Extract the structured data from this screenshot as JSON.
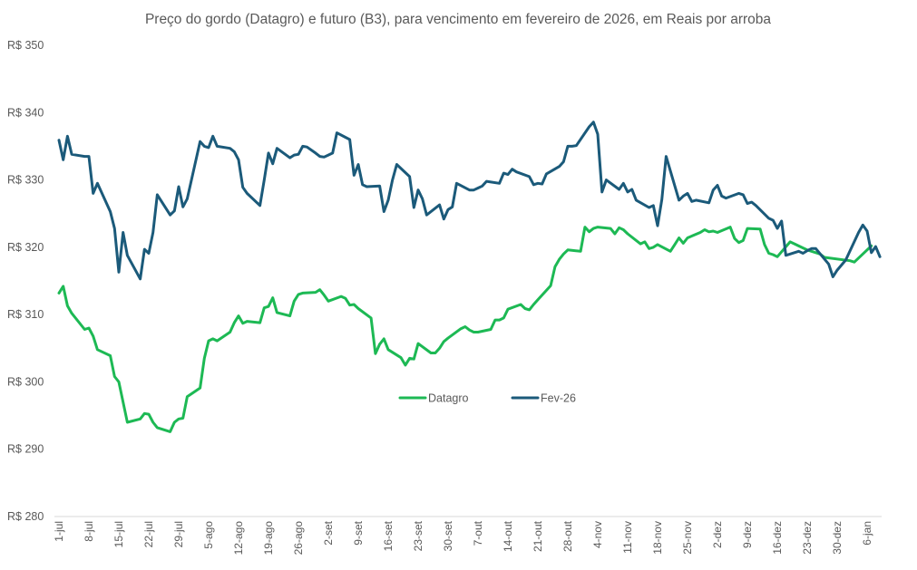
{
  "chart_data": {
    "type": "line",
    "title": "Preço do gordo (Datagro) e futuro (B3), para vencimento em fevereiro de 2026, em Reais por arroba",
    "xlabel": "",
    "ylabel": "",
    "ylim": [
      280,
      350
    ],
    "yticks": [
      350,
      340,
      330,
      320,
      310,
      300,
      290,
      280
    ],
    "ytick_prefix": "R$ ",
    "grid": false,
    "legend_position": "center",
    "xtick_labels": [
      "1-jul",
      "8-jul",
      "15-jul",
      "22-jul",
      "29-jul",
      "5-ago",
      "12-ago",
      "19-ago",
      "26-ago",
      "2-set",
      "9-set",
      "16-set",
      "23-set",
      "30-set",
      "7-out",
      "14-out",
      "21-out",
      "28-out",
      "4-nov",
      "11-nov",
      "18-nov",
      "25-nov",
      "2-dez",
      "9-dez",
      "16-dez",
      "23-dez",
      "30-dez",
      "6-jan"
    ],
    "x_unit": "days since 1-jul",
    "series": [
      {
        "name": "Datagro",
        "color": "#1DB954",
        "points": [
          [
            0,
            313.2
          ],
          [
            1,
            314.2
          ],
          [
            2,
            311.3
          ],
          [
            3,
            310.2
          ],
          [
            6,
            307.8
          ],
          [
            7,
            308.0
          ],
          [
            8,
            306.8
          ],
          [
            9,
            304.8
          ],
          [
            12,
            303.9
          ],
          [
            13,
            300.8
          ],
          [
            14,
            300.0
          ],
          [
            16,
            294.0
          ],
          [
            19,
            294.5
          ],
          [
            20,
            295.3
          ],
          [
            21,
            295.2
          ],
          [
            22,
            294.0
          ],
          [
            23,
            293.2
          ],
          [
            26,
            292.6
          ],
          [
            27,
            294.0
          ],
          [
            28,
            294.5
          ],
          [
            29,
            294.6
          ],
          [
            30,
            297.8
          ],
          [
            33,
            299.1
          ],
          [
            34,
            303.5
          ],
          [
            35,
            306.1
          ],
          [
            36,
            306.4
          ],
          [
            37,
            306.1
          ],
          [
            40,
            307.4
          ],
          [
            41,
            308.8
          ],
          [
            42,
            309.8
          ],
          [
            43,
            308.7
          ],
          [
            44,
            309.0
          ],
          [
            47,
            308.8
          ],
          [
            48,
            311.0
          ],
          [
            49,
            311.2
          ],
          [
            50,
            312.5
          ],
          [
            51,
            310.3
          ],
          [
            54,
            309.8
          ],
          [
            55,
            312.0
          ],
          [
            56,
            313.0
          ],
          [
            57,
            313.2
          ],
          [
            60,
            313.3
          ],
          [
            61,
            313.7
          ],
          [
            62,
            312.9
          ],
          [
            63,
            312.0
          ],
          [
            66,
            312.7
          ],
          [
            67,
            312.4
          ],
          [
            68,
            311.4
          ],
          [
            69,
            311.5
          ],
          [
            70,
            310.9
          ],
          [
            73,
            309.5
          ],
          [
            74,
            304.2
          ],
          [
            75,
            305.6
          ],
          [
            76,
            306.4
          ],
          [
            77,
            304.8
          ],
          [
            80,
            303.6
          ],
          [
            81,
            302.5
          ],
          [
            82,
            303.5
          ],
          [
            83,
            303.4
          ],
          [
            84,
            305.7
          ],
          [
            87,
            304.3
          ],
          [
            88,
            304.3
          ],
          [
            89,
            305.0
          ],
          [
            90,
            306.0
          ],
          [
            91,
            306.5
          ],
          [
            94,
            307.9
          ],
          [
            95,
            308.2
          ],
          [
            96,
            307.7
          ],
          [
            97,
            307.4
          ],
          [
            98,
            307.4
          ],
          [
            101,
            307.8
          ],
          [
            102,
            309.2
          ],
          [
            103,
            309.2
          ],
          [
            104,
            309.5
          ],
          [
            105,
            310.8
          ],
          [
            108,
            311.5
          ],
          [
            109,
            310.9
          ],
          [
            110,
            310.7
          ],
          [
            111,
            311.5
          ],
          [
            112,
            312.2
          ],
          [
            115,
            314.3
          ],
          [
            116,
            317.1
          ],
          [
            117,
            318.2
          ],
          [
            118,
            319.0
          ],
          [
            119,
            319.6
          ],
          [
            122,
            319.4
          ],
          [
            123,
            323.0
          ],
          [
            124,
            322.3
          ],
          [
            125,
            322.8
          ],
          [
            126,
            323.0
          ],
          [
            129,
            322.8
          ],
          [
            130,
            322.0
          ],
          [
            131,
            322.9
          ],
          [
            132,
            322.6
          ],
          [
            133,
            322.0
          ],
          [
            136,
            320.5
          ],
          [
            137,
            320.8
          ],
          [
            138,
            319.8
          ],
          [
            139,
            320.0
          ],
          [
            140,
            320.4
          ],
          [
            143,
            319.4
          ],
          [
            144,
            320.4
          ],
          [
            145,
            321.4
          ],
          [
            146,
            320.6
          ],
          [
            147,
            321.4
          ],
          [
            150,
            322.2
          ],
          [
            151,
            322.6
          ],
          [
            152,
            322.3
          ],
          [
            153,
            322.4
          ],
          [
            154,
            322.2
          ],
          [
            157,
            323.0
          ],
          [
            158,
            321.3
          ],
          [
            159,
            320.7
          ],
          [
            160,
            321.0
          ],
          [
            161,
            322.8
          ],
          [
            164,
            322.7
          ],
          [
            165,
            320.4
          ],
          [
            166,
            319.1
          ],
          [
            167,
            318.9
          ],
          [
            168,
            318.6
          ],
          [
            171,
            320.8
          ],
          [
            172,
            320.5
          ],
          [
            173,
            320.2
          ],
          [
            174,
            319.9
          ],
          [
            175,
            319.6
          ],
          [
            178,
            319.0
          ],
          [
            179,
            318.5
          ],
          [
            185,
            318.0
          ],
          [
            186,
            317.8
          ],
          [
            189,
            319.6
          ],
          [
            190,
            320.2
          ]
        ]
      },
      {
        "name": "Fev-26",
        "color": "#1B5A7A",
        "points": [
          [
            0,
            335.9
          ],
          [
            1,
            333.0
          ],
          [
            2,
            336.5
          ],
          [
            3,
            333.8
          ],
          [
            6,
            333.5
          ],
          [
            7,
            333.5
          ],
          [
            8,
            328.0
          ],
          [
            9,
            329.5
          ],
          [
            12,
            325.3
          ],
          [
            13,
            322.8
          ],
          [
            14,
            316.3
          ],
          [
            15,
            322.2
          ],
          [
            16,
            318.8
          ],
          [
            19,
            315.3
          ],
          [
            20,
            319.7
          ],
          [
            21,
            319.1
          ],
          [
            22,
            322.2
          ],
          [
            23,
            327.8
          ],
          [
            26,
            324.8
          ],
          [
            27,
            325.4
          ],
          [
            28,
            329.0
          ],
          [
            29,
            326.0
          ],
          [
            30,
            327.2
          ],
          [
            33,
            335.7
          ],
          [
            34,
            335.0
          ],
          [
            35,
            334.8
          ],
          [
            36,
            336.5
          ],
          [
            37,
            335.0
          ],
          [
            40,
            334.7
          ],
          [
            41,
            334.2
          ],
          [
            42,
            333.0
          ],
          [
            43,
            328.9
          ],
          [
            44,
            328.0
          ],
          [
            47,
            326.2
          ],
          [
            48,
            330.0
          ],
          [
            49,
            334.0
          ],
          [
            50,
            332.4
          ],
          [
            51,
            334.7
          ],
          [
            54,
            333.3
          ],
          [
            55,
            333.7
          ],
          [
            56,
            333.8
          ],
          [
            57,
            335.0
          ],
          [
            58,
            334.9
          ],
          [
            60,
            334.0
          ],
          [
            61,
            333.5
          ],
          [
            62,
            333.4
          ],
          [
            63,
            333.7
          ],
          [
            64,
            334.0
          ],
          [
            65,
            337.0
          ],
          [
            68,
            336.0
          ],
          [
            69,
            330.7
          ],
          [
            70,
            332.3
          ],
          [
            71,
            329.3
          ],
          [
            72,
            329.0
          ],
          [
            75,
            329.1
          ],
          [
            76,
            325.3
          ],
          [
            77,
            327.0
          ],
          [
            78,
            330.0
          ],
          [
            79,
            332.3
          ],
          [
            82,
            330.5
          ],
          [
            83,
            325.9
          ],
          [
            84,
            328.5
          ],
          [
            85,
            327.2
          ],
          [
            86,
            324.8
          ],
          [
            89,
            326.3
          ],
          [
            90,
            324.2
          ],
          [
            91,
            325.6
          ],
          [
            92,
            326.0
          ],
          [
            93,
            329.5
          ],
          [
            96,
            328.5
          ],
          [
            97,
            328.5
          ],
          [
            98,
            328.8
          ],
          [
            99,
            329.1
          ],
          [
            100,
            329.8
          ],
          [
            103,
            329.5
          ],
          [
            104,
            331.0
          ],
          [
            105,
            330.8
          ],
          [
            106,
            331.6
          ],
          [
            107,
            331.2
          ],
          [
            110,
            330.5
          ],
          [
            111,
            329.3
          ],
          [
            112,
            329.5
          ],
          [
            113,
            329.4
          ],
          [
            114,
            330.9
          ],
          [
            117,
            332.0
          ],
          [
            118,
            332.7
          ],
          [
            119,
            335.0
          ],
          [
            120,
            335.0
          ],
          [
            121,
            335.1
          ],
          [
            124,
            337.9
          ],
          [
            125,
            338.6
          ],
          [
            126,
            336.8
          ],
          [
            127,
            328.2
          ],
          [
            128,
            330.0
          ],
          [
            131,
            328.6
          ],
          [
            132,
            329.5
          ],
          [
            133,
            328.2
          ],
          [
            134,
            328.6
          ],
          [
            135,
            327.0
          ],
          [
            138,
            325.9
          ],
          [
            139,
            326.2
          ],
          [
            140,
            323.2
          ],
          [
            141,
            327.1
          ],
          [
            142,
            333.5
          ],
          [
            145,
            327.0
          ],
          [
            146,
            327.6
          ],
          [
            147,
            328.0
          ],
          [
            148,
            326.8
          ],
          [
            149,
            327.0
          ],
          [
            152,
            326.6
          ],
          [
            153,
            328.5
          ],
          [
            154,
            329.2
          ],
          [
            155,
            327.6
          ],
          [
            156,
            327.3
          ],
          [
            159,
            328.0
          ],
          [
            160,
            327.8
          ],
          [
            161,
            326.5
          ],
          [
            162,
            326.7
          ],
          [
            163,
            326.2
          ],
          [
            166,
            324.3
          ],
          [
            167,
            324.0
          ],
          [
            168,
            322.8
          ],
          [
            169,
            323.9
          ],
          [
            170,
            318.8
          ],
          [
            173,
            319.4
          ],
          [
            174,
            319.1
          ],
          [
            175,
            319.5
          ],
          [
            176,
            319.8
          ],
          [
            177,
            319.8
          ],
          [
            180,
            317.5
          ],
          [
            181,
            315.6
          ],
          [
            182,
            316.6
          ],
          [
            184,
            318.1
          ],
          [
            187,
            322.2
          ],
          [
            188,
            323.3
          ],
          [
            189,
            322.4
          ],
          [
            190,
            319.2
          ],
          [
            191,
            320.1
          ],
          [
            192,
            318.6
          ]
        ]
      }
    ]
  }
}
